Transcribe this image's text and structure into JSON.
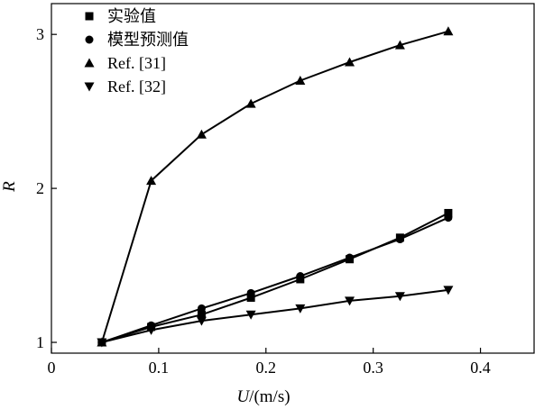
{
  "chart_data": {
    "type": "line",
    "xlabel_var": "U",
    "xlabel_unit": "/(m/s)",
    "ylabel": "R",
    "xlim": [
      0,
      0.45
    ],
    "ylim": [
      0.93,
      3.2
    ],
    "x_ticks": [
      0,
      0.1,
      0.2,
      0.3,
      0.4
    ],
    "x_tick_labels": [
      "0",
      "0.1",
      "0.2",
      "0.3",
      "0.4"
    ],
    "y_ticks": [
      1,
      2,
      3
    ],
    "y_tick_labels": [
      "1",
      "2",
      "3"
    ],
    "legend_position": "top-left",
    "series": [
      {
        "name": "实验值",
        "marker": "square",
        "x": [
          0.047,
          0.093,
          0.14,
          0.186,
          0.232,
          0.278,
          0.325,
          0.37
        ],
        "y": [
          1.0,
          1.1,
          1.18,
          1.29,
          1.41,
          1.54,
          1.68,
          1.84
        ]
      },
      {
        "name": "模型预测值",
        "marker": "circle",
        "x": [
          0.047,
          0.093,
          0.14,
          0.186,
          0.232,
          0.278,
          0.325,
          0.37
        ],
        "y": [
          1.0,
          1.11,
          1.22,
          1.32,
          1.43,
          1.55,
          1.67,
          1.81
        ]
      },
      {
        "name": "Ref. [31]",
        "marker": "triangle-up",
        "x": [
          0.047,
          0.093,
          0.14,
          0.186,
          0.232,
          0.278,
          0.325,
          0.37
        ],
        "y": [
          1.0,
          2.05,
          2.35,
          2.55,
          2.7,
          2.82,
          2.93,
          3.02
        ]
      },
      {
        "name": "Ref. [32]",
        "marker": "triangle-down",
        "x": [
          0.047,
          0.093,
          0.14,
          0.186,
          0.232,
          0.278,
          0.325,
          0.37
        ],
        "y": [
          1.0,
          1.08,
          1.14,
          1.18,
          1.22,
          1.27,
          1.3,
          1.34
        ]
      }
    ]
  }
}
